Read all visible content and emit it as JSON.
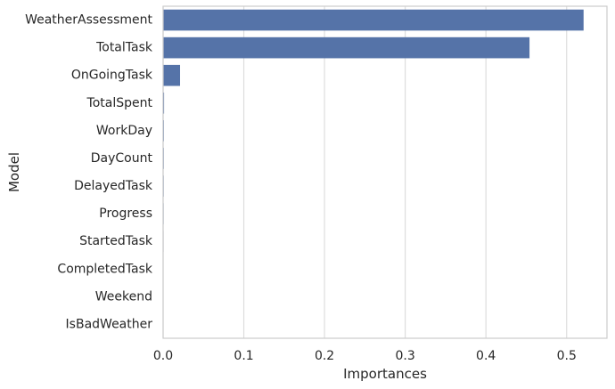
{
  "chart_data": {
    "type": "bar",
    "orientation": "horizontal",
    "categories": [
      "WeatherAssessment",
      "TotalTask",
      "OnGoingTask",
      "TotalSpent",
      "WorkDay",
      "DayCount",
      "DelayedTask",
      "Progress",
      "StartedTask",
      "CompletedTask",
      "Weekend",
      "IsBadWeather"
    ],
    "values": [
      0.521,
      0.454,
      0.021,
      0.0012,
      0.001,
      0.0009,
      0.0008,
      0.0007,
      0.0006,
      0.0005,
      0.0004,
      0.0003
    ],
    "xlabel": "Importances",
    "ylabel": "Model",
    "xlim": [
      0,
      0.55
    ],
    "xticks": [
      0.0,
      0.1,
      0.2,
      0.3,
      0.4,
      0.5
    ],
    "xtick_labels": [
      "0.0",
      "0.1",
      "0.2",
      "0.3",
      "0.4",
      "0.5"
    ],
    "grid": "vertical",
    "colors": {
      "bar": "#5573a8",
      "grid": "#dddddd",
      "spine": "#cccccc",
      "text": "#262626"
    }
  }
}
